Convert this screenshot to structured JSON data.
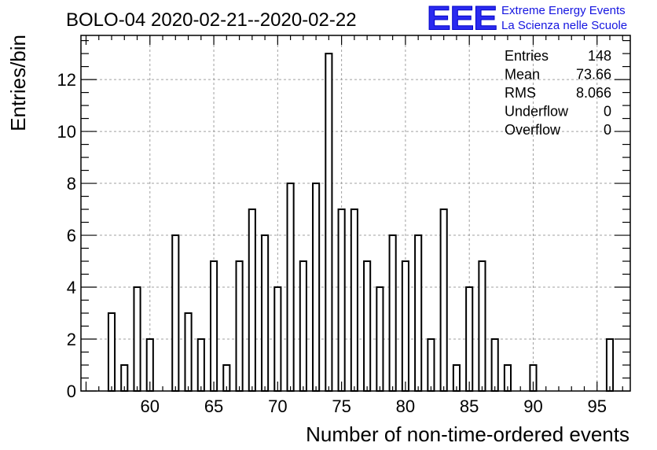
{
  "logo": {
    "mark": "EEE",
    "line1": "Extreme Energy Events",
    "line2": "La Scienza nelle Scuole",
    "color": "#1e1ee6"
  },
  "chart_data": {
    "type": "bar",
    "title": "BOLO-04 2020-02-21--2020-02-22",
    "xlabel": "Number of non-time-ordered events",
    "ylabel": "Entries/bin",
    "xlim": [
      54.6,
      97.6
    ],
    "ylim": [
      0,
      13.7
    ],
    "grid": true,
    "x_ticks": [
      60,
      65,
      70,
      75,
      80,
      85,
      90,
      95
    ],
    "y_ticks": [
      0,
      2,
      4,
      6,
      8,
      10,
      12
    ],
    "bin_width": 0.5,
    "x": [
      57,
      58,
      59,
      60,
      61,
      62,
      63,
      64,
      65,
      66,
      67,
      68,
      69,
      70,
      71,
      72,
      73,
      74,
      75,
      76,
      77,
      78,
      79,
      80,
      81,
      82,
      83,
      84,
      85,
      86,
      87,
      88,
      89,
      90,
      91,
      92,
      93,
      94,
      95,
      96
    ],
    "values": [
      3,
      1,
      4,
      2,
      0,
      6,
      3,
      2,
      5,
      1,
      5,
      7,
      6,
      4,
      8,
      5,
      8,
      13,
      7,
      7,
      5,
      4,
      6,
      5,
      6,
      2,
      7,
      1,
      4,
      5,
      2,
      1,
      0,
      1,
      0,
      0,
      0,
      0,
      0,
      2
    ],
    "stats": {
      "rows": [
        {
          "label": "Entries",
          "value": "148"
        },
        {
          "label": "Mean",
          "value": "73.66"
        },
        {
          "label": "RMS",
          "value": "8.066"
        },
        {
          "label": "Underflow",
          "value": "0"
        },
        {
          "label": "Overflow",
          "value": "0"
        }
      ],
      "placement": "top-right"
    },
    "bar_color": "#000000",
    "fill_color": "#ffffff",
    "grid_color": "#a0a0a0"
  }
}
